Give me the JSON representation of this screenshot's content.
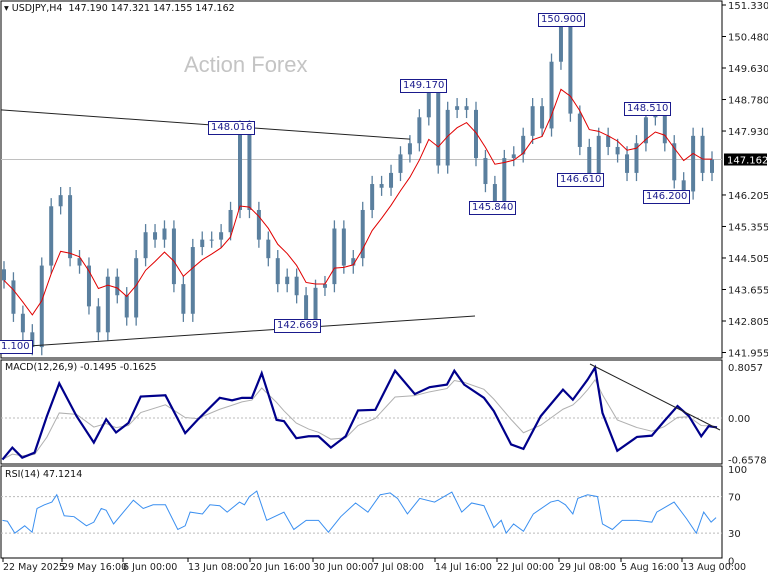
{
  "header": {
    "symbol": "USDJPY,H4",
    "ohlc": "147.190 147.321 147.155 147.162"
  },
  "watermark": "Action Forex",
  "colors": {
    "candle": "#5a7f9e",
    "ma": "#e00000",
    "macd": "#00008b",
    "signal": "#b0b0b0",
    "rsi": "#3a8ff0",
    "trendline": "#222222",
    "label": "#1a1a8c"
  },
  "chart_data": [
    {
      "type": "candlestick",
      "title": "USDJPY,H4",
      "ylim": [
        141.955,
        151.33
      ],
      "yticks": [
        "151.330",
        "150.480",
        "149.630",
        "148.780",
        "147.930",
        "147.162",
        "146.205",
        "145.355",
        "144.505",
        "143.655",
        "142.805",
        "141.955"
      ],
      "current_price": "147.162",
      "close": [
        143.9,
        143.0,
        142.5,
        142.1,
        144.3,
        145.9,
        146.2,
        144.5,
        144.3,
        143.2,
        142.5,
        144.0,
        143.5,
        142.9,
        144.5,
        145.2,
        145.0,
        145.3,
        143.8,
        143.0,
        144.8,
        145.0,
        145.0,
        145.2,
        145.8,
        148.0,
        145.8,
        145.0,
        144.5,
        143.8,
        144.0,
        143.5,
        142.7,
        143.7,
        143.8,
        145.3,
        144.3,
        144.5,
        145.8,
        146.5,
        146.4,
        146.8,
        147.3,
        147.6,
        148.3,
        149.1,
        147.0,
        148.5,
        148.6,
        148.5,
        147.2,
        146.5,
        145.9,
        147.2,
        147.3,
        147.8,
        148.6,
        148.0,
        149.8,
        150.8,
        148.4,
        147.5,
        146.7,
        147.8,
        147.5,
        147.3,
        146.8,
        147.6,
        148.3,
        148.4,
        147.6,
        146.6,
        146.3,
        147.8,
        146.8,
        147.162
      ],
      "price_labels": [
        "148.016",
        "142.669",
        "149.170",
        "145.840",
        "150.900",
        "146.610",
        "148.510",
        "146.200",
        "1.100"
      ],
      "moving_average": "red line",
      "trendlines": 2
    },
    {
      "type": "line",
      "title": "MACD(12,26,9) -0.1495 -0.1625",
      "ylim": [
        -0.6578,
        0.8057
      ],
      "yticks": [
        "0.8057",
        "0.00",
        "-0.6578"
      ],
      "macd": [
        -0.66,
        -0.47,
        -0.63,
        -0.55,
        0.03,
        0.55,
        0.03,
        -0.39,
        -0.02,
        -0.23,
        -0.08,
        0.34,
        0.36,
        -0.24,
        -0.03,
        0.32,
        0.28,
        0.32,
        0.32,
        0.71,
        -0.03,
        -0.05,
        -0.32,
        -0.29,
        -0.29,
        -0.47,
        -0.29,
        0.12,
        0.13,
        0.75,
        0.38,
        0.49,
        0.53,
        0.75,
        0.53,
        0.32,
        0.11,
        -0.42,
        -0.49,
        0.03,
        0.45,
        0.29,
        0.45,
        0.61,
        0.8,
        0.08,
        -0.52,
        -0.3,
        -0.28,
        -0.05,
        0.19,
        0.03,
        -0.29,
        -0.13,
        -0.15
      ]
    },
    {
      "type": "line",
      "title": "RSI(14) 47.1214",
      "ylim": [
        0,
        100
      ],
      "yticks": [
        "100",
        "70",
        "30",
        "0"
      ],
      "rsi": [
        44,
        43,
        30,
        38,
        31,
        57,
        61,
        64,
        72,
        49,
        48,
        38,
        42,
        57,
        55,
        40,
        53,
        66,
        57,
        61,
        61,
        34,
        38,
        53,
        51,
        61,
        60,
        53,
        64,
        61,
        70,
        76,
        44,
        53,
        34,
        44,
        44,
        31,
        48,
        63,
        53,
        72,
        74,
        68,
        51,
        68,
        64,
        75,
        53,
        63,
        60,
        36,
        44,
        30,
        40,
        32,
        51,
        64,
        66,
        61,
        51,
        68,
        72,
        70,
        40,
        34,
        44,
        44,
        42,
        53,
        64,
        46,
        30,
        53,
        42,
        47
      ]
    }
  ],
  "time_axis": [
    "22 May 2025",
    "29 May 16:00",
    "6 Jun 00:00",
    "13 Jun 08:00",
    "20 Jun 16:00",
    "30 Jun 00:00",
    "7 Jul 08:00",
    "14 Jul 16:00",
    "22 Jul 00:00",
    "29 Jul 08:00",
    "5 Aug 16:00",
    "13 Aug 00:00"
  ]
}
